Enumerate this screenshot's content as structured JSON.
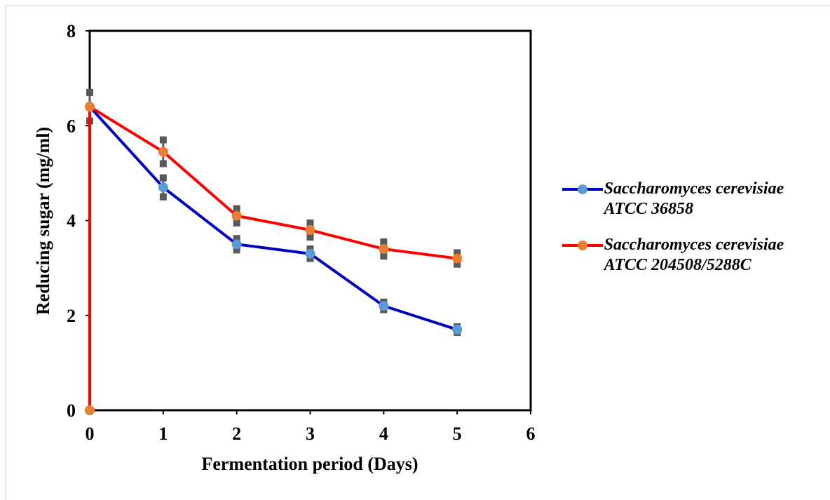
{
  "chart_data": {
    "type": "line",
    "xlabel": "Fermentation period (Days)",
    "ylabel": "Reducing sugar (mg/ml)",
    "xlim": [
      0,
      6
    ],
    "xticks": [
      0,
      1,
      2,
      3,
      4,
      5,
      6
    ],
    "ylim": [
      0,
      8
    ],
    "yticks": [
      0,
      2,
      4,
      6,
      8
    ],
    "legend": "right",
    "series": [
      {
        "name": "Saccharomyces cerevisiae ATCC 36858",
        "color": "#0000c0",
        "marker_color": "#5b9bd5",
        "x": [
          0,
          0,
          1,
          2,
          3,
          4,
          5
        ],
        "values": [
          0,
          6.4,
          4.7,
          3.5,
          3.3,
          2.2,
          1.7
        ],
        "errors": [
          null,
          0.3,
          0.2,
          0.12,
          0.1,
          0.08,
          0.06
        ]
      },
      {
        "name": "Saccharomyces cerevisiae ATCC 204508/5288C",
        "color": "#ff0000",
        "marker_color": "#ed7d31",
        "x": [
          0,
          0,
          1,
          2,
          3,
          4,
          5
        ],
        "values": [
          0,
          6.4,
          5.45,
          4.1,
          3.8,
          3.4,
          3.2
        ],
        "errors": [
          null,
          0.3,
          0.25,
          0.15,
          0.15,
          0.15,
          0.12
        ]
      }
    ]
  }
}
